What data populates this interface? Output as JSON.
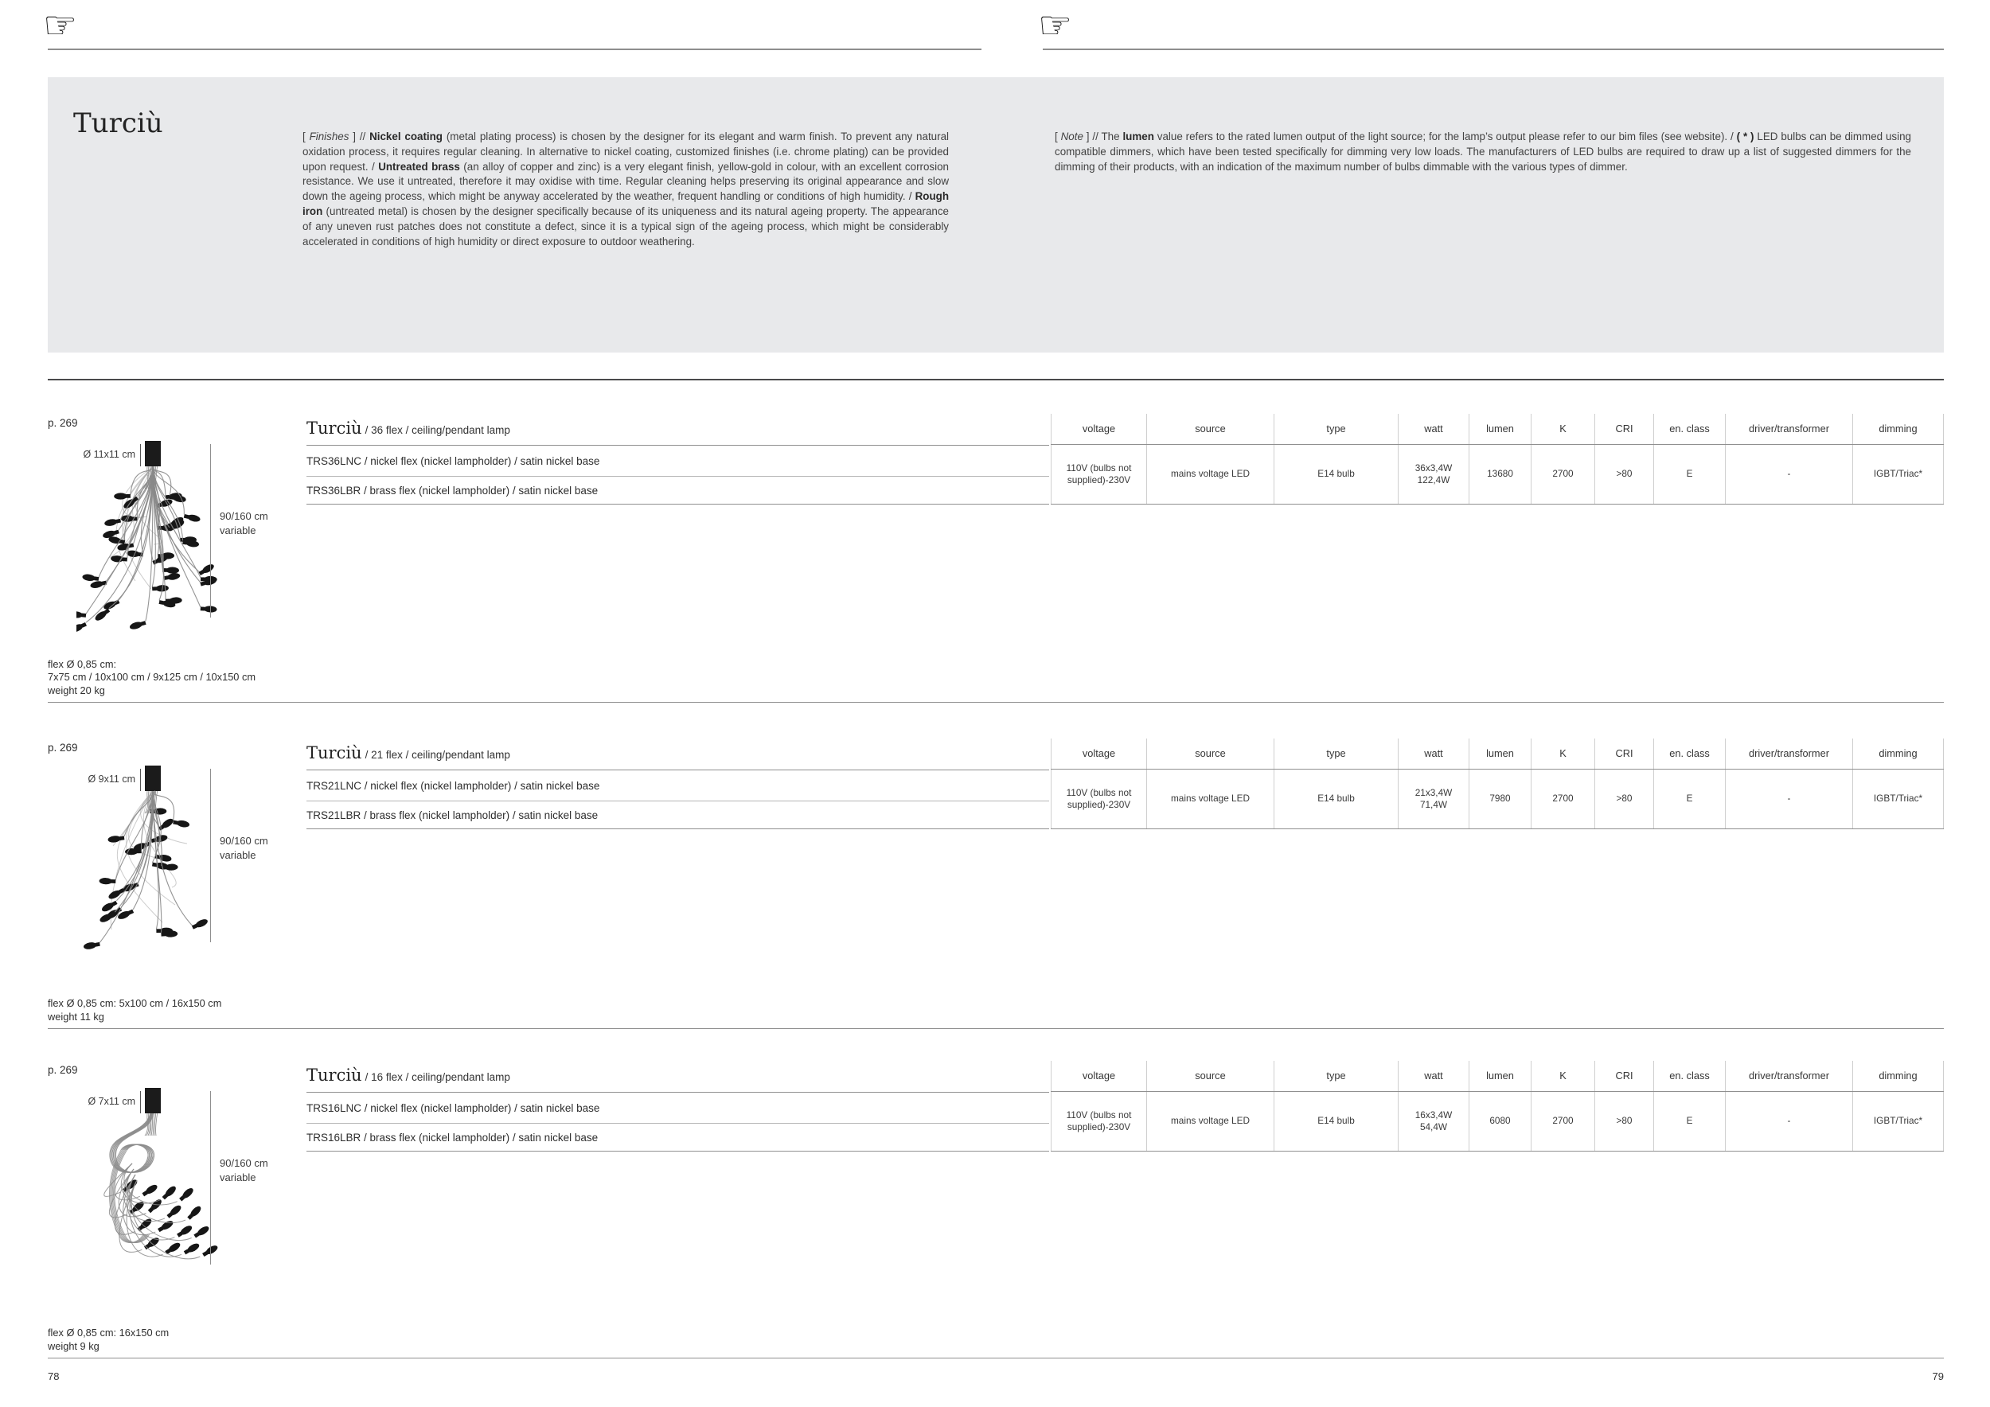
{
  "colors": {
    "masthead_background": "#e8e9eb",
    "ink": "#1a1a1a",
    "rule_gray": "#8f8f8f"
  },
  "icons": {
    "manicule": "☞"
  },
  "masthead": {
    "title": "Turciù",
    "finishes_segments": [
      [
        "",
        "[ "
      ],
      [
        "i",
        "Finishes"
      ],
      [
        "",
        " ]  //  "
      ],
      [
        "b",
        "Nickel coating"
      ],
      [
        "",
        " (metal plating process) is chosen by the designer for its elegant and warm finish. To prevent any natural oxidation process, it requires regular cleaning. In alternative to nickel coating, customized finishes (i.e. chrome plating) can be provided upon request. / "
      ],
      [
        "b",
        "Untreated brass"
      ],
      [
        "",
        " (an alloy of copper and zinc) is a very elegant finish, yellow-gold in colour, with an excellent corrosion resistance. We use it untreated, therefore it may oxidise with time. Regular cleaning helps preserving its original appearance and slow down the ageing process, which might be anyway accelerated by the weather, frequent handling or conditions of high humidity. / "
      ],
      [
        "b",
        "Rough iron"
      ],
      [
        "",
        " (untreated metal) is chosen by the designer specifically because of its uniqueness and its natural ageing property. The appearance of any uneven rust patches does not constitute a defect, since it is a typical sign of the ageing process, which might be considerably accelerated in conditions of high humidity or direct exposure to outdoor weathering."
      ]
    ],
    "note_segments": [
      [
        "",
        "[ "
      ],
      [
        "i",
        "Note"
      ],
      [
        "",
        " ]  //  The "
      ],
      [
        "b",
        "lumen"
      ],
      [
        "",
        " value refers to the rated lumen output of the light source; for the lamp’s output please refer to our bim files (see website). / "
      ],
      [
        "b",
        "( * )"
      ],
      [
        "",
        " LED bulbs can be dimmed using compatible dimmers, which have been tested specifically for dimming very low loads. The manufacturers of LED bulbs are required to draw up a list of suggested dimmers for the dimming of their products, with an indication of the maximum number of bulbs dimmable with the various types of dimmer."
      ]
    ]
  },
  "table": {
    "headers": [
      "voltage",
      "source",
      "type",
      "watt",
      "lumen",
      "K",
      "CRI",
      "en. class",
      "driver/transformer",
      "dimming"
    ]
  },
  "sections": [
    {
      "page_ref": "p. 269",
      "canopy_dimension": "Ø 11x11 cm",
      "drop_height": "90/160 cm",
      "drop_variable": "variable",
      "title": "Turciù",
      "subtitle": "/ 36 flex / ceiling/pendant lamp",
      "models": [
        "TRS36LNC / nickel flex (nickel lampholder) / satin nickel base",
        "TRS36LBR / brass flex (nickel lampholder) / satin nickel base"
      ],
      "specs": {
        "voltage": "110V (bulbs not supplied)-230V",
        "source": "mains voltage LED",
        "type": "E14 bulb",
        "watt_line1": "36x3,4W",
        "watt_line2": "122,4W",
        "lumen": "13680",
        "k": "2700",
        "cri": ">80",
        "en_class": "E",
        "driver_transformer": "-",
        "dimming": "IGBT/Triac*"
      },
      "footer_lines": [
        "flex Ø 0,85 cm:",
        "7x75 cm / 10x100 cm / 9x125 cm / 10x150 cm",
        "weight 20 kg"
      ]
    },
    {
      "page_ref": "p. 269",
      "canopy_dimension": "Ø 9x11 cm",
      "drop_height": "90/160 cm",
      "drop_variable": "variable",
      "title": "Turciù",
      "subtitle": "/ 21 flex / ceiling/pendant lamp",
      "models": [
        "TRS21LNC / nickel flex (nickel lampholder) / satin nickel base",
        "TRS21LBR / brass flex (nickel lampholder) / satin nickel base"
      ],
      "specs": {
        "voltage": "110V (bulbs not supplied)-230V",
        "source": "mains voltage LED",
        "type": "E14 bulb",
        "watt_line1": "21x3,4W",
        "watt_line2": "71,4W",
        "lumen": "7980",
        "k": "2700",
        "cri": ">80",
        "en_class": "E",
        "driver_transformer": "-",
        "dimming": "IGBT/Triac*"
      },
      "footer_lines": [
        "flex Ø 0,85 cm: 5x100 cm / 16x150 cm",
        "weight 11 kg"
      ]
    },
    {
      "page_ref": "p. 269",
      "canopy_dimension": "Ø 7x11 cm",
      "drop_height": "90/160 cm",
      "drop_variable": "variable",
      "title": "Turciù",
      "subtitle": "/ 16 flex / ceiling/pendant lamp",
      "models": [
        "TRS16LNC / nickel flex (nickel lampholder) / satin nickel base",
        "TRS16LBR / brass flex (nickel lampholder) / satin nickel base"
      ],
      "specs": {
        "voltage": "110V (bulbs not supplied)-230V",
        "source": "mains voltage LED",
        "type": "E14 bulb",
        "watt_line1": "16x3,4W",
        "watt_line2": "54,4W",
        "lumen": "6080",
        "k": "2700",
        "cri": ">80",
        "en_class": "E",
        "driver_transformer": "-",
        "dimming": "IGBT/Triac*"
      },
      "footer_lines": [
        "flex Ø 0,85 cm: 16x150 cm",
        "weight 9 kg"
      ]
    }
  ],
  "footer": {
    "left_page_number": "78",
    "right_page_number": "79"
  }
}
